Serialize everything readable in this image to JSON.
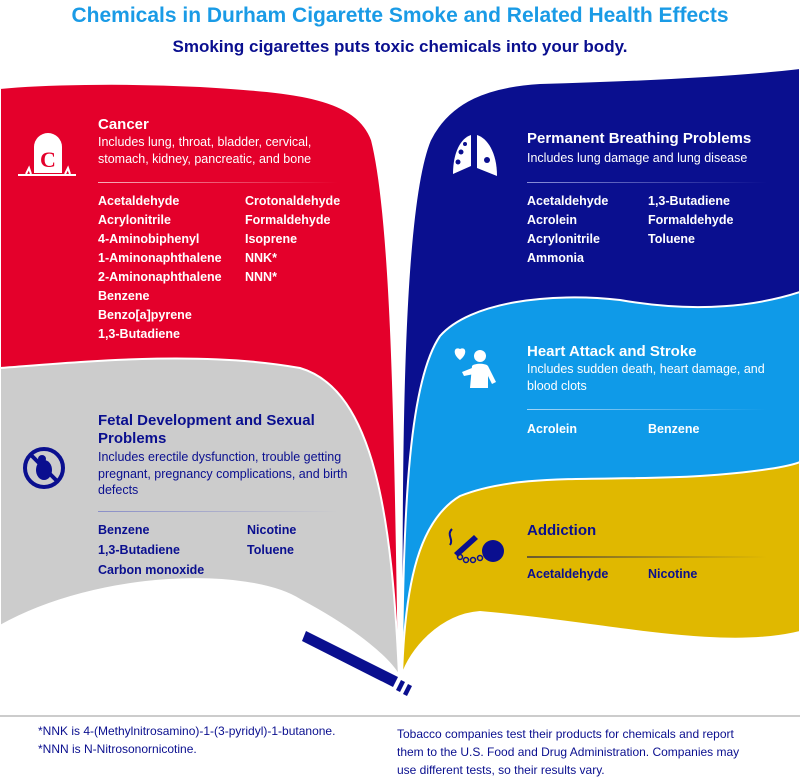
{
  "header": {
    "title": "Chemicals in Durham Cigarette Smoke and Related Health Effects",
    "subtitle": "Smoking cigarettes puts toxic chemicals into your body."
  },
  "colors": {
    "cancer": "#e4002b",
    "fetal": "#cccccc",
    "breathing": "#0a0f8f",
    "heart": "#0f9ae8",
    "addiction": "#e0b800",
    "title": "#1a9be6"
  },
  "sections": {
    "cancer": {
      "icon": "tombstone-c-icon",
      "title": "Cancer",
      "description": "Includes lung, throat, bladder, cervical, stomach, kidney, pancreatic, and bone",
      "col1": [
        "Acetaldehyde",
        "Acrylonitrile",
        "4-Aminobiphenyl",
        "1-Aminonaphthalene",
        "2-Aminonaphthalene",
        "Benzene",
        "Benzo[a]pyrene",
        "1,3-Butadiene"
      ],
      "col2": [
        "Crotonaldehyde",
        "Formaldehyde",
        "Isoprene",
        "NNK*",
        "NNN*"
      ]
    },
    "fetal": {
      "icon": "no-fetus-icon",
      "title": "Fetal Development and Sexual Problems",
      "description": "Includes erectile dysfunction, trouble getting pregnant, pregnancy complications, and birth defects",
      "col1": [
        "Benzene",
        "1,3-Butadiene",
        "Carbon monoxide"
      ],
      "col2": [
        "Nicotine",
        "Toluene"
      ]
    },
    "breathing": {
      "icon": "lungs-icon",
      "title": "Permanent Breathing Problems",
      "description": "Includes lung damage and lung disease",
      "col1": [
        "Acetaldehyde",
        "Acrolein",
        "Acrylonitrile",
        "Ammonia"
      ],
      "col2": [
        "1,3-Butadiene",
        "Formaldehyde",
        "Toluene"
      ]
    },
    "heart": {
      "icon": "broken-heart-person-icon",
      "title": "Heart Attack and Stroke",
      "description": "Includes sudden death, heart damage, and blood clots",
      "col1": [
        "Acrolein"
      ],
      "col2": [
        "Benzene"
      ]
    },
    "addiction": {
      "icon": "cigarette-ball-chain-icon",
      "title": "Addiction",
      "col1": [
        "Acetaldehyde"
      ],
      "col2": [
        "Nicotine"
      ]
    }
  },
  "footer": {
    "notes": [
      "*NNK is 4-(Methylnitrosamino)-1-(3-pyridyl)-1-butanone.",
      "*NNN is N-Nitrosonornicotine."
    ],
    "disclaimer": "Tobacco companies test their products for chemicals and report them to the U.S. Food and Drug Administration. Companies may use different tests, so their results vary."
  }
}
